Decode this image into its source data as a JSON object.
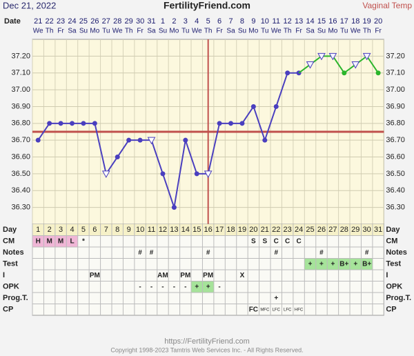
{
  "header": {
    "date": "Dec 21, 2022",
    "site": "FertilityFriend.com",
    "temp_method": "Vaginal Temp",
    "date_label": "Date"
  },
  "chart_data": {
    "type": "line",
    "categories": [
      1,
      2,
      3,
      4,
      5,
      6,
      7,
      8,
      9,
      10,
      11,
      12,
      13,
      14,
      15,
      16,
      17,
      18,
      19,
      20,
      21,
      22,
      23,
      24,
      25,
      26,
      27,
      28,
      29,
      30,
      31
    ],
    "dates": [
      21,
      22,
      23,
      24,
      25,
      26,
      27,
      28,
      29,
      30,
      31,
      1,
      2,
      3,
      4,
      5,
      6,
      7,
      8,
      9,
      10,
      11,
      12,
      13,
      14,
      15,
      16,
      17,
      18,
      19,
      20
    ],
    "weekdays": [
      "We",
      "Th",
      "Fr",
      "Sa",
      "Su",
      "Mo",
      "Tu",
      "We",
      "Th",
      "Fr",
      "Sa",
      "Su",
      "Mo",
      "Tu",
      "We",
      "Th",
      "Fr",
      "Sa",
      "Su",
      "Mo",
      "Tu",
      "We",
      "Th",
      "Fr",
      "Sa",
      "Su",
      "Mo",
      "Tu",
      "We",
      "Th",
      "Fr"
    ],
    "series": [
      {
        "color": "#4a3fbf",
        "values": [
          36.7,
          36.8,
          36.8,
          36.8,
          36.8,
          36.8,
          36.5,
          36.6,
          36.7,
          36.7,
          36.7,
          36.5,
          36.3,
          36.7,
          36.5,
          36.5,
          36.8,
          36.8,
          36.8,
          36.9,
          36.7,
          36.9,
          37.1,
          37.1,
          null,
          null,
          null,
          null,
          null,
          null,
          null
        ],
        "markers": [
          "circle",
          "circle",
          "circle",
          "circle",
          "circle",
          "circle",
          "triangle",
          "circle",
          "circle",
          "circle",
          "triangle",
          "circle",
          "circle",
          "circle",
          "circle",
          "triangle",
          "circle",
          "circle",
          "circle",
          "circle",
          "circle",
          "circle",
          "circle",
          "circle",
          null,
          null,
          null,
          null,
          null,
          null,
          null
        ]
      },
      {
        "color": "#2bb52b",
        "values": [
          null,
          null,
          null,
          null,
          null,
          null,
          null,
          null,
          null,
          null,
          null,
          null,
          null,
          null,
          null,
          null,
          null,
          null,
          null,
          null,
          null,
          null,
          null,
          37.1,
          37.15,
          37.2,
          37.2,
          37.1,
          37.15,
          37.2,
          37.1
        ],
        "markers": [
          null,
          null,
          null,
          null,
          null,
          null,
          null,
          null,
          null,
          null,
          null,
          null,
          null,
          null,
          null,
          null,
          null,
          null,
          null,
          null,
          null,
          null,
          null,
          null,
          "triangle",
          "triangle",
          "triangle",
          "circle",
          "triangle",
          "triangle",
          "circle"
        ]
      }
    ],
    "coverline": 36.75,
    "coverline_color": "#c0504d",
    "ovulation_day": 16,
    "ylim": [
      36.2,
      37.3
    ],
    "yticks": [
      {
        "value": 36.3,
        "label": "36.30"
      },
      {
        "value": 36.4,
        "label": "36.40"
      },
      {
        "value": 36.5,
        "label": "36.50"
      },
      {
        "value": 36.6,
        "label": "36.60"
      },
      {
        "value": 36.7,
        "label": "36.70"
      },
      {
        "value": 36.8,
        "label": "36.80"
      },
      {
        "value": 36.9,
        "label": "36.90"
      },
      {
        "value": 37.0,
        "label": "37.00"
      },
      {
        "value": 37.1,
        "label": "37.10"
      },
      {
        "value": 37.2,
        "label": "37.20"
      }
    ],
    "grid": true
  },
  "table": {
    "day_label": "Day",
    "rows": [
      {
        "label": "CM",
        "cells": [
          "H",
          "M",
          "M",
          "L",
          "*",
          null,
          null,
          null,
          null,
          null,
          null,
          null,
          null,
          null,
          null,
          null,
          null,
          null,
          null,
          "S",
          "S",
          "C",
          "C",
          "C",
          null,
          null,
          null,
          null,
          null,
          null,
          null
        ],
        "highlight": {
          "color": "#f0b6d6",
          "days": [
            1,
            2,
            3,
            4
          ]
        }
      },
      {
        "label": "Notes",
        "cells": [
          null,
          null,
          null,
          null,
          null,
          null,
          null,
          null,
          null,
          "#",
          "#",
          null,
          null,
          null,
          null,
          "#",
          null,
          null,
          null,
          null,
          null,
          "#",
          null,
          null,
          null,
          "#",
          null,
          null,
          null,
          "#",
          null
        ]
      },
      {
        "label": "Test",
        "cells": [
          null,
          null,
          null,
          null,
          null,
          null,
          null,
          null,
          null,
          null,
          null,
          null,
          null,
          null,
          null,
          null,
          null,
          null,
          null,
          null,
          null,
          null,
          null,
          null,
          "+",
          "+",
          "+",
          "B+",
          "+",
          "B+",
          null
        ],
        "highlight": {
          "color": "#a6e39a",
          "days": [
            25,
            26,
            27,
            28,
            29,
            30
          ]
        }
      },
      {
        "label": "I",
        "cells": [
          null,
          null,
          null,
          null,
          null,
          "PM",
          null,
          null,
          null,
          null,
          null,
          "AM",
          null,
          "PM",
          null,
          "PM",
          null,
          null,
          "X",
          null,
          null,
          null,
          null,
          null,
          null,
          null,
          null,
          null,
          null,
          null,
          null
        ]
      },
      {
        "label": "OPK",
        "cells": [
          null,
          null,
          null,
          null,
          null,
          null,
          null,
          null,
          null,
          "-",
          "-",
          "-",
          "-",
          "-",
          "+",
          "+",
          "-",
          null,
          null,
          null,
          null,
          null,
          null,
          null,
          null,
          null,
          null,
          null,
          null,
          null,
          null
        ],
        "highlight": {
          "color": "#a6e39a",
          "days": [
            15,
            16
          ]
        }
      },
      {
        "label": "Prog.T.",
        "cells": [
          null,
          null,
          null,
          null,
          null,
          null,
          null,
          null,
          null,
          null,
          null,
          null,
          null,
          null,
          null,
          null,
          null,
          null,
          null,
          null,
          null,
          "+",
          null,
          null,
          null,
          null,
          null,
          null,
          null,
          null,
          null
        ]
      },
      {
        "label": "CP",
        "cells": [
          null,
          null,
          null,
          null,
          null,
          null,
          null,
          null,
          null,
          null,
          null,
          null,
          null,
          null,
          null,
          null,
          null,
          null,
          null,
          "FC",
          "MFC",
          "LFC",
          "LFC",
          "HFC",
          null,
          null,
          null,
          null,
          null,
          null,
          null
        ]
      }
    ]
  },
  "footer": {
    "url": "https://FertilityFriend.com",
    "copyright": "Copyright 1998-2023 Tamtris Web Services Inc. - All Rights Reserved."
  }
}
